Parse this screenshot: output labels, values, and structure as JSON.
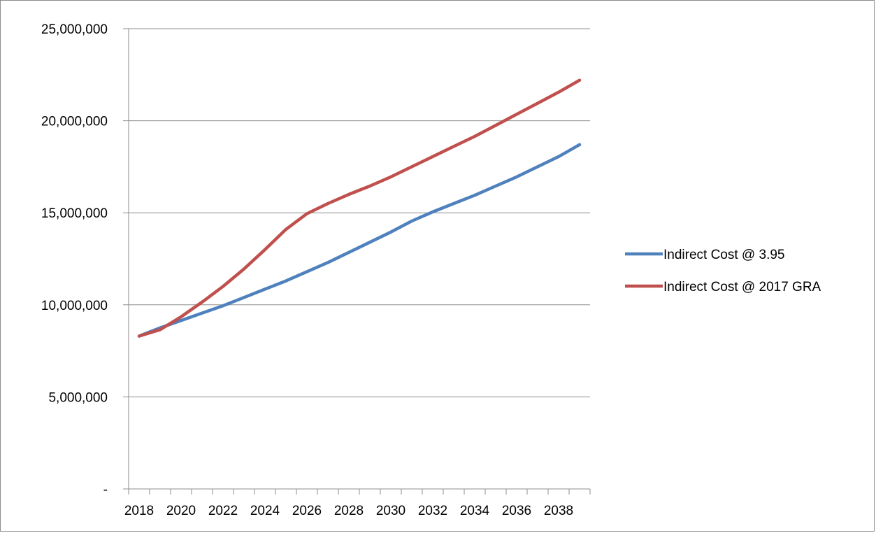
{
  "chart_data": {
    "type": "line",
    "title": "",
    "xlabel": "",
    "ylabel": "",
    "x": [
      2018,
      2019,
      2020,
      2021,
      2022,
      2023,
      2024,
      2025,
      2026,
      2027,
      2028,
      2029,
      2030,
      2031,
      2032,
      2033,
      2034,
      2035,
      2036,
      2037,
      2038,
      2039
    ],
    "x_tick_labels": [
      "2018",
      "2020",
      "2022",
      "2024",
      "2026",
      "2028",
      "2030",
      "2032",
      "2034",
      "2036",
      "2038"
    ],
    "ylim": [
      0,
      25000000
    ],
    "y_ticks": [
      0,
      5000000,
      10000000,
      15000000,
      20000000,
      25000000
    ],
    "y_tick_labels": [
      "-",
      "5,000,000",
      "10,000,000",
      "15,000,000",
      "20,000,000",
      "25,000,000"
    ],
    "grid": "horizontal",
    "legend_position": "right",
    "series": [
      {
        "name": "Indirect Cost @ 3.95",
        "color": "#4f81bd",
        "values": [
          8300000,
          8750000,
          9150000,
          9550000,
          9950000,
          10400000,
          10850000,
          11300000,
          11800000,
          12300000,
          12850000,
          13400000,
          13950000,
          14550000,
          15050000,
          15500000,
          15950000,
          16450000,
          16950000,
          17500000,
          18050000,
          18700000
        ]
      },
      {
        "name": "Indirect Cost @ 2017 GRA",
        "color": "#c0504d",
        "values": [
          8300000,
          8650000,
          9350000,
          10150000,
          11000000,
          11950000,
          13000000,
          14100000,
          14950000,
          15500000,
          16000000,
          16450000,
          16950000,
          17500000,
          18050000,
          18600000,
          19150000,
          19750000,
          20350000,
          20950000,
          21550000,
          22200000
        ]
      }
    ]
  }
}
